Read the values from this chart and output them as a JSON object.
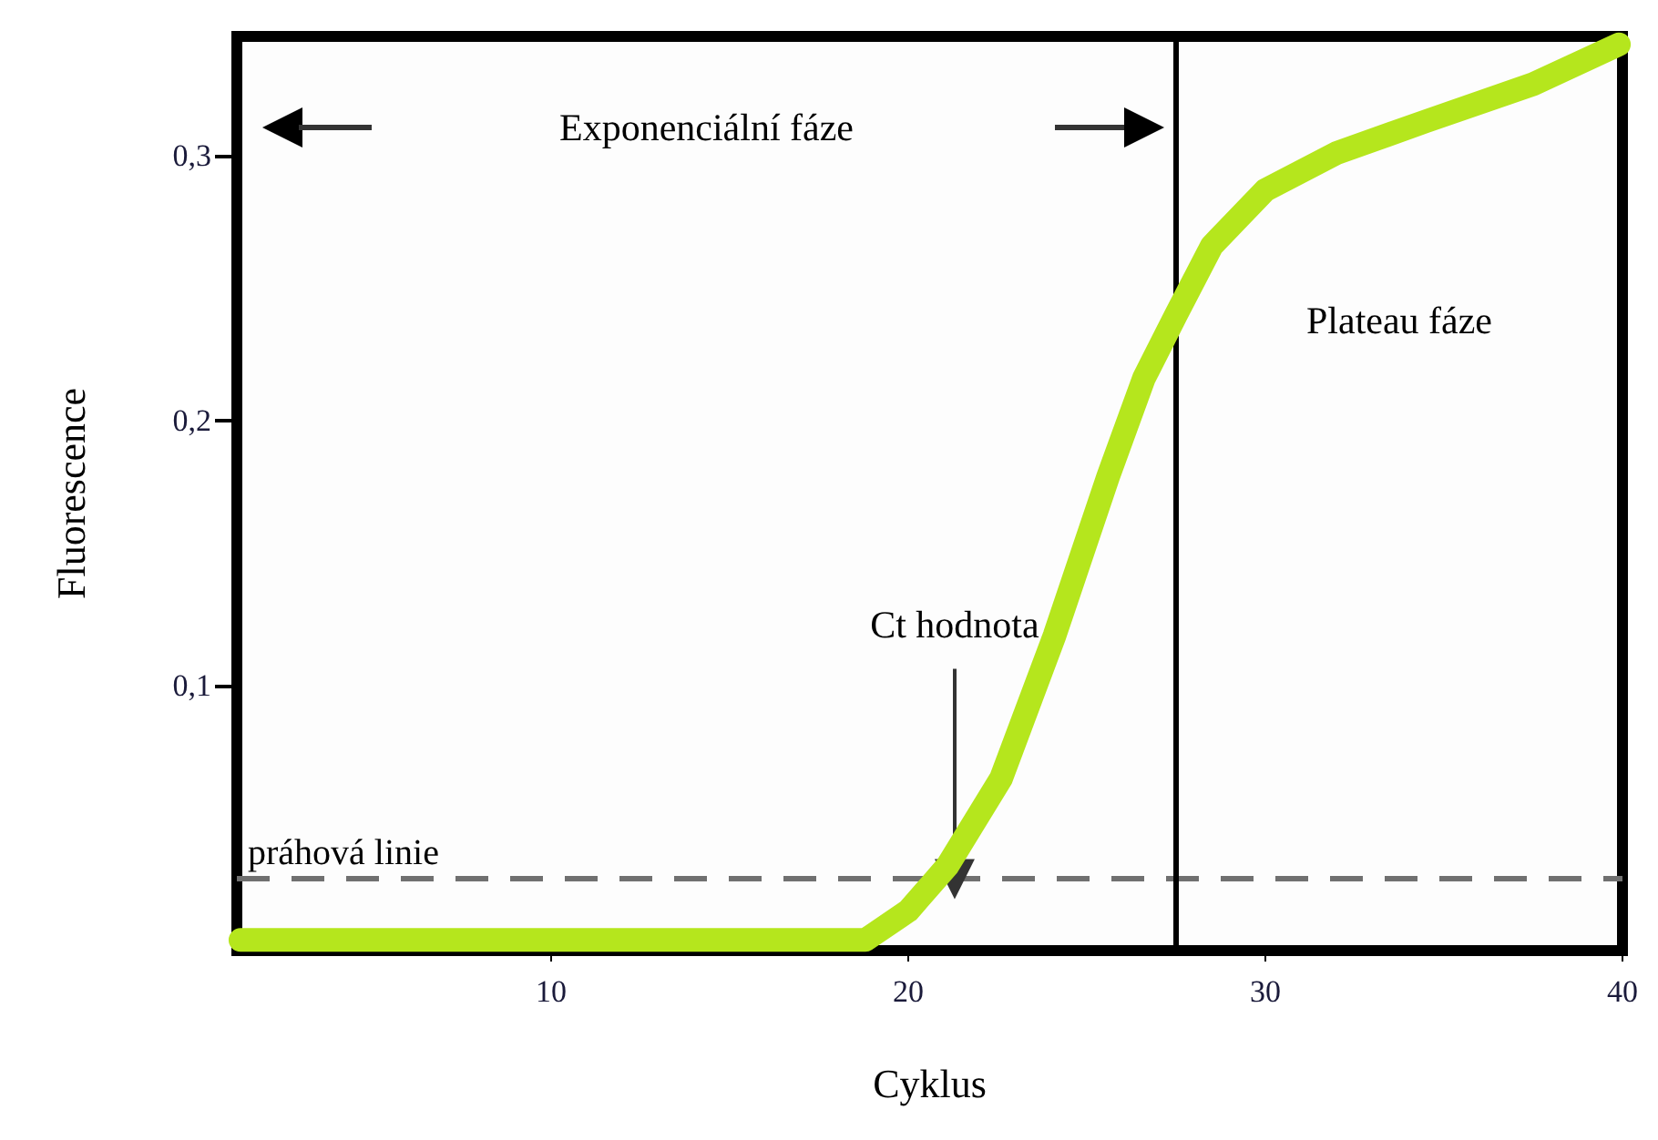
{
  "chart_data": {
    "type": "line",
    "xlabel": "Cyklus",
    "ylabel": "Fluorescence",
    "xlim": [
      1.2,
      40
    ],
    "ylim": [
      0,
      0.345
    ],
    "xticks": [
      10,
      20,
      30,
      40
    ],
    "yticks": [
      {
        "value": 0.1,
        "label": "0,1"
      },
      {
        "value": 0.2,
        "label": "0,2"
      },
      {
        "value": 0.3,
        "label": "0,3"
      }
    ],
    "grid": false,
    "line_style": "solid",
    "series": [
      {
        "color": "#b5e61d",
        "x": [
          1.3,
          5,
          10,
          15,
          18.8,
          20,
          21.1,
          22.6,
          24.1,
          25.6,
          26.6,
          27.5,
          28.5,
          30,
          32,
          34.5,
          37.5,
          39.9
        ],
        "values": [
          0.004,
          0.004,
          0.004,
          0.004,
          0.004,
          0.015,
          0.032,
          0.065,
          0.119,
          0.179,
          0.216,
          0.24,
          0.266,
          0.287,
          0.301,
          0.313,
          0.327,
          0.342
        ]
      }
    ],
    "ref_lines": [
      {
        "axis": "y",
        "value": 0.027,
        "label": "práhová linie",
        "color": "#707070",
        "line_style": "dashed"
      },
      {
        "axis": "x",
        "value": 27.5,
        "color": "#000000",
        "line_style": "solid"
      }
    ],
    "annotations": [
      "Exponenciální fáze",
      "Plateau fáze",
      {
        "text": "Ct hodnota",
        "x": 21.3,
        "y": 0.027
      }
    ]
  }
}
